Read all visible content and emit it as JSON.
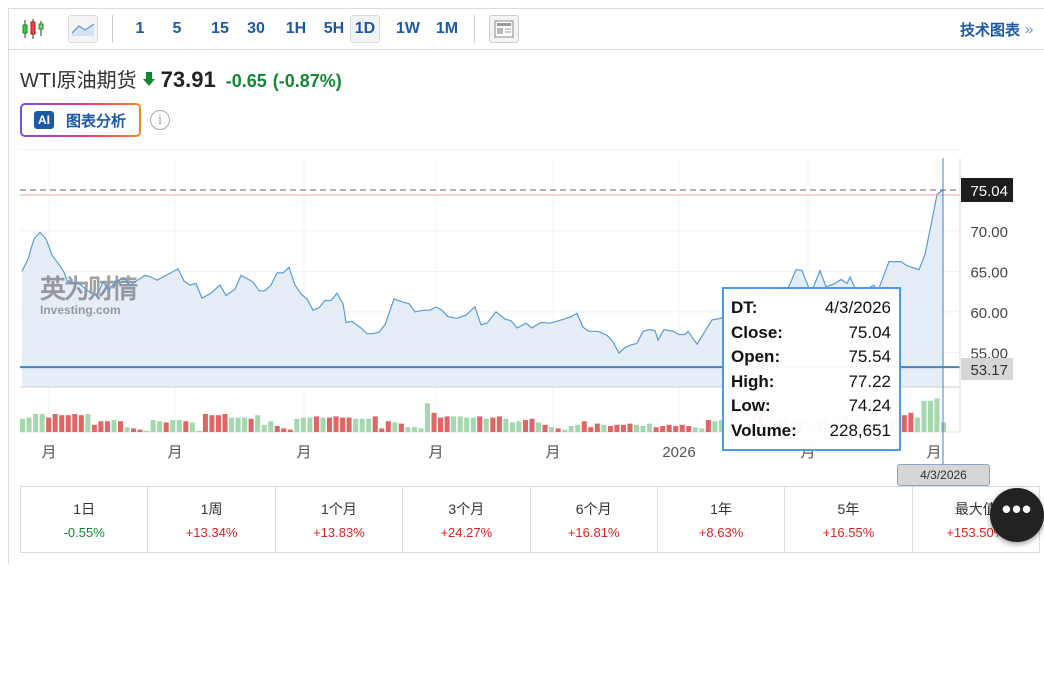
{
  "toolbar": {
    "intervals": [
      "1",
      "5",
      "15",
      "30",
      "1H",
      "5H",
      "1D",
      "1W",
      "1M"
    ],
    "selected_interval": "1D",
    "technical_chart_label": "技术图表",
    "technical_chart_arrow": "»",
    "icons": [
      "candlestick-icon",
      "area-chart-icon",
      "news-layout-icon"
    ]
  },
  "instrument": {
    "name": "WTI原油期货",
    "price": "73.91",
    "change": "-0.65",
    "change_pct": "(-0.87%)",
    "direction_icon": "arrow-down-icon",
    "down_color": "#118833",
    "up_color": "#e02020"
  },
  "ai_button": {
    "badge": "AI",
    "label": "图表分析",
    "info": "i"
  },
  "chart_data": {
    "type": "area",
    "x_tick_labels": [
      "月",
      "月",
      "月",
      "月",
      "月",
      "2026",
      "月",
      "月"
    ],
    "x_tick_days": [
      9,
      51,
      94,
      138,
      177,
      219,
      262,
      305
    ],
    "xlim": [
      0,
      307
    ],
    "ylim": [
      50.8,
      78.5
    ],
    "y_ticks": [
      55,
      60,
      65,
      70
    ],
    "y_tick_labels": [
      "55.00",
      "60.00",
      "65.00",
      "70.00"
    ],
    "last_price_label": "75.04",
    "last_price": 75.04,
    "reference_line": 53.17,
    "reference_label": "53.17",
    "crosshair_day": 307,
    "crosshair_date": "4/3/2026",
    "watermark": "英为财情 Investing.com",
    "line_color": "#5b9bd5",
    "series": [
      [
        0,
        65.0
      ],
      [
        2,
        66.5
      ],
      [
        4,
        69.0
      ],
      [
        6,
        69.8
      ],
      [
        8,
        69.0
      ],
      [
        10,
        67.0
      ],
      [
        12,
        66.0
      ],
      [
        14,
        64.9
      ],
      [
        15,
        63.9
      ],
      [
        18,
        63.5
      ],
      [
        19,
        63.5
      ],
      [
        22,
        62.6
      ],
      [
        25,
        62.0
      ],
      [
        27,
        63.7
      ],
      [
        29,
        62.7
      ],
      [
        31,
        63.7
      ],
      [
        34,
        64.2
      ],
      [
        36,
        63.3
      ],
      [
        41,
        64.5
      ],
      [
        43,
        64.3
      ],
      [
        45,
        63.9
      ],
      [
        47,
        64.3
      ],
      [
        52,
        65.3
      ],
      [
        54,
        63.8
      ],
      [
        56,
        63.3
      ],
      [
        58,
        63.5
      ],
      [
        60,
        61.7
      ],
      [
        63,
        62.3
      ],
      [
        66,
        63.3
      ],
      [
        68,
        62.0
      ],
      [
        71,
        62.8
      ],
      [
        73,
        64.5
      ],
      [
        77,
        63.7
      ],
      [
        79,
        62.6
      ],
      [
        81,
        62.6
      ],
      [
        83,
        63.3
      ],
      [
        85,
        64.8
      ],
      [
        87,
        64.8
      ],
      [
        89,
        65.5
      ],
      [
        91,
        63.3
      ],
      [
        93,
        62.2
      ],
      [
        95,
        61.6
      ],
      [
        97,
        60.2
      ],
      [
        99,
        60.5
      ],
      [
        101,
        61.4
      ],
      [
        103,
        61.4
      ],
      [
        105,
        62.3
      ],
      [
        107,
        61.0
      ],
      [
        108,
        58.7
      ],
      [
        110,
        58.8
      ],
      [
        113,
        58.0
      ],
      [
        115,
        57.3
      ],
      [
        117,
        57.3
      ],
      [
        119,
        57.5
      ],
      [
        121,
        58.4
      ],
      [
        124,
        61.6
      ],
      [
        127,
        61.2
      ],
      [
        129,
        61.0
      ],
      [
        131,
        60.0
      ],
      [
        134,
        60.2
      ],
      [
        136,
        60.2
      ],
      [
        138,
        60.6
      ],
      [
        140,
        60.2
      ],
      [
        142,
        59.4
      ],
      [
        145,
        59.2
      ],
      [
        148,
        59.6
      ],
      [
        150,
        60.3
      ],
      [
        151,
        60.6
      ],
      [
        153,
        58.4
      ],
      [
        155,
        58.6
      ],
      [
        158,
        60.0
      ],
      [
        161,
        59.1
      ],
      [
        163,
        58.9
      ],
      [
        165,
        58.0
      ],
      [
        168,
        58.6
      ],
      [
        170,
        58.0
      ],
      [
        173,
        58.7
      ],
      [
        176,
        58.6
      ],
      [
        179,
        58.9
      ],
      [
        183,
        59.4
      ],
      [
        185,
        59.8
      ],
      [
        187,
        58.1
      ],
      [
        189,
        57.6
      ],
      [
        192,
        57.6
      ],
      [
        195,
        57.1
      ],
      [
        197,
        56.3
      ],
      [
        199,
        54.9
      ],
      [
        201,
        55.6
      ],
      [
        203,
        55.9
      ],
      [
        205,
        56.1
      ],
      [
        207,
        57.6
      ],
      [
        209,
        57.8
      ],
      [
        211,
        57.7
      ],
      [
        212,
        56.5
      ],
      [
        214,
        57.8
      ],
      [
        217,
        57.6
      ],
      [
        219,
        57.2
      ],
      [
        221,
        57.2
      ],
      [
        222,
        57.6
      ],
      [
        225,
        56.0
      ],
      [
        230,
        59.0
      ],
      [
        233,
        59.2
      ],
      [
        236,
        60.5
      ],
      [
        239,
        61.2
      ],
      [
        243,
        60.5
      ],
      [
        246,
        61.8
      ],
      [
        249,
        62.4
      ],
      [
        255,
        62.6
      ],
      [
        258,
        65.2
      ],
      [
        260,
        65.1
      ],
      [
        263,
        62.3
      ],
      [
        266,
        65.1
      ],
      [
        268,
        63.1
      ],
      [
        271,
        63.5
      ],
      [
        273,
        64.0
      ],
      [
        275,
        63.5
      ],
      [
        276,
        64.3
      ],
      [
        278,
        62.7
      ],
      [
        281,
        62.7
      ],
      [
        284,
        63.3
      ],
      [
        285,
        62.3
      ],
      [
        288,
        65.2
      ],
      [
        289,
        66.2
      ],
      [
        293,
        66.2
      ],
      [
        295,
        65.7
      ],
      [
        299,
        65.2
      ],
      [
        301,
        67.1
      ],
      [
        303,
        70.7
      ],
      [
        305,
        74.5
      ],
      [
        307,
        75.04
      ]
    ],
    "volume_k": [
      55,
      60,
      75,
      75,
      60,
      75,
      70,
      70,
      75,
      70,
      75,
      30,
      45,
      45,
      50,
      45,
      20,
      15,
      10,
      5,
      50,
      45,
      40,
      50,
      50,
      45,
      40,
      5,
      75,
      70,
      70,
      75,
      60,
      60,
      60,
      55,
      70,
      30,
      45,
      25,
      15,
      10,
      55,
      60,
      60,
      65,
      60,
      60,
      65,
      60,
      60,
      55,
      55,
      55,
      65,
      15,
      45,
      40,
      35,
      20,
      20,
      15,
      120,
      80,
      60,
      65,
      65,
      65,
      60,
      60,
      65,
      55,
      60,
      65,
      55,
      40,
      45,
      50,
      55,
      40,
      30,
      20,
      15,
      10,
      25,
      30,
      45,
      20,
      35,
      30,
      25,
      30,
      30,
      35,
      30,
      25,
      35,
      20,
      25,
      30,
      25,
      30,
      25,
      20,
      15,
      50,
      45,
      50,
      40,
      20,
      45,
      35,
      60,
      80,
      70,
      60,
      55,
      55,
      50,
      50,
      40,
      45,
      50,
      55,
      60,
      60,
      65,
      55,
      60,
      60,
      40,
      45,
      50,
      45,
      60,
      70,
      80,
      60,
      130,
      130,
      140,
      40
    ],
    "volume_up": [
      1,
      1,
      1,
      1,
      0,
      0,
      0,
      0,
      0,
      0,
      1,
      0,
      0,
      0,
      1,
      0,
      1,
      0,
      0,
      1,
      1,
      1,
      0,
      1,
      1,
      0,
      1,
      1,
      0,
      0,
      0,
      0,
      1,
      1,
      1,
      0,
      1,
      1,
      1,
      0,
      0,
      0,
      1,
      1,
      1,
      0,
      1,
      0,
      0,
      0,
      0,
      1,
      1,
      1,
      0,
      0,
      0,
      1,
      0,
      1,
      1,
      1,
      1,
      0,
      0,
      0,
      1,
      1,
      1,
      1,
      0,
      1,
      0,
      0,
      1,
      1,
      1,
      0,
      0,
      1,
      0,
      1,
      0,
      1,
      1,
      1,
      0,
      0,
      0,
      1,
      0,
      0,
      0,
      0,
      1,
      1,
      1,
      0,
      0,
      0,
      0,
      0,
      0,
      1,
      1,
      0,
      1,
      1,
      1,
      0,
      1,
      1,
      0,
      0,
      1,
      1,
      0,
      0,
      1,
      0,
      1,
      1,
      0,
      0,
      1,
      1,
      0,
      0,
      1,
      0,
      0,
      1,
      0,
      0,
      0,
      0,
      0,
      1,
      1,
      1,
      1,
      1
    ]
  },
  "tooltip": {
    "rows": [
      {
        "label": "DT:",
        "value": "4/3/2026"
      },
      {
        "label": "Close:",
        "value": "75.04"
      },
      {
        "label": "Open:",
        "value": "75.54"
      },
      {
        "label": "High:",
        "value": "77.22"
      },
      {
        "label": "Low:",
        "value": "74.24"
      },
      {
        "label": "Volume:",
        "value": "228,651"
      }
    ]
  },
  "performance": [
    {
      "label": "1日",
      "value": "-0.55%"
    },
    {
      "label": "1周",
      "value": "+13.34%"
    },
    {
      "label": "1个月",
      "value": "+13.83%"
    },
    {
      "label": "3个月",
      "value": "+24.27%"
    },
    {
      "label": "6个月",
      "value": "+16.81%"
    },
    {
      "label": "1年",
      "value": "+8.63%"
    },
    {
      "label": "5年",
      "value": "+16.55%"
    },
    {
      "label": "最大值",
      "value": "+153.50%"
    }
  ],
  "more_button": {
    "label": "•••"
  }
}
